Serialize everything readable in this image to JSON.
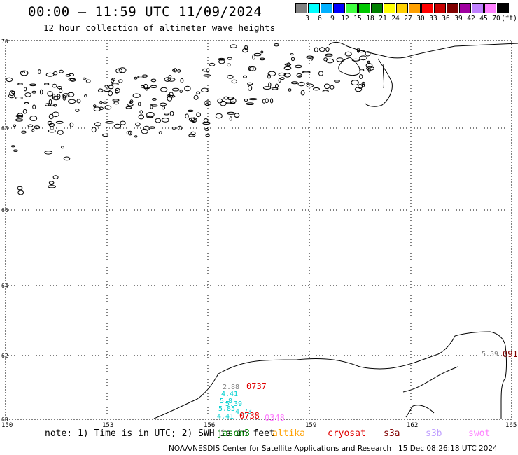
{
  "header": {
    "title": "00:00 – 11:59 UTC 11/09/2024",
    "subtitle": "12 hour collection of altimeter wave heights"
  },
  "color_scale": {
    "swatches": [
      {
        "label": "3",
        "color": "#808080"
      },
      {
        "label": "6",
        "color": "#00ffff"
      },
      {
        "label": "9",
        "color": "#00b0ff"
      },
      {
        "label": "12",
        "color": "#0000ff"
      },
      {
        "label": "15",
        "color": "#40ff40"
      },
      {
        "label": "18",
        "color": "#00c800"
      },
      {
        "label": "21",
        "color": "#008000"
      },
      {
        "label": "24",
        "color": "#ffff00"
      },
      {
        "label": "27",
        "color": "#ffd000"
      },
      {
        "label": "30",
        "color": "#ffa000"
      },
      {
        "label": "33",
        "color": "#ff0000"
      },
      {
        "label": "36",
        "color": "#c80000"
      },
      {
        "label": "39",
        "color": "#800000"
      },
      {
        "label": "42",
        "color": "#a000a0"
      },
      {
        "label": "45",
        "color": "#c080ff"
      },
      {
        "label": "70",
        "color": "#ff80ff"
      },
      {
        "label": "",
        "color": "#000000"
      }
    ],
    "unit": "(ft)"
  },
  "map": {
    "lat_labels": [
      "70",
      "68",
      "66",
      "64",
      "62",
      "60"
    ],
    "lon_labels": [
      "150",
      "153",
      "156",
      "159",
      "162",
      "165"
    ],
    "observations": [
      {
        "text": "2.88",
        "color": "#808080"
      },
      {
        "text": "4.41",
        "color": "#00d0d0"
      },
      {
        "text": "5.8",
        "color": "#00d0d0"
      },
      {
        "text": "5.39",
        "color": "#00d0d0"
      },
      {
        "text": "5.85",
        "color": "#00d0d0"
      },
      {
        "text": "4.73",
        "color": "#00d0d0"
      },
      {
        "text": "4.41",
        "color": "#00d0d0"
      },
      {
        "text": "5.59",
        "color": "#808080"
      }
    ],
    "passes": [
      {
        "text": "0737",
        "color": "#e00000"
      },
      {
        "text": "0738",
        "color": "#e00000"
      },
      {
        "text": "0348",
        "color": "#ff80ff"
      },
      {
        "text": "091",
        "color": "#800000"
      }
    ]
  },
  "footer": {
    "note": "note: 1) Time is in UTC; 2) SWH is in feet",
    "satellites": [
      {
        "name": "jason3",
        "color": "#008000"
      },
      {
        "name": "altika",
        "color": "#ffa000"
      },
      {
        "name": "cryosat",
        "color": "#e00000"
      },
      {
        "name": "s3a",
        "color": "#800000"
      },
      {
        "name": "s3b",
        "color": "#c0a0ff"
      },
      {
        "name": "swot",
        "color": "#ff80ff"
      }
    ],
    "credit": "NOAA/NESDIS Center for Satellite Applications and Research   15 Dec 08:26:18 UTC 2024"
  }
}
